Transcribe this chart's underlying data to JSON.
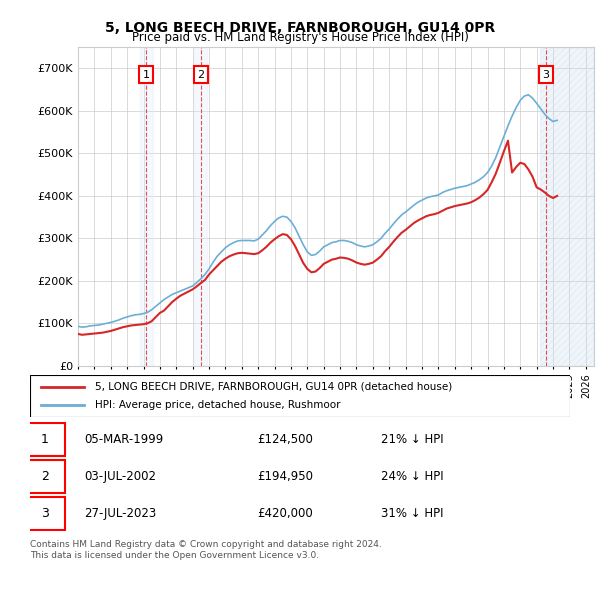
{
  "title": "5, LONG BEECH DRIVE, FARNBOROUGH, GU14 0PR",
  "subtitle": "Price paid vs. HM Land Registry's House Price Index (HPI)",
  "legend_line1": "5, LONG BEECH DRIVE, FARNBOROUGH, GU14 0PR (detached house)",
  "legend_line2": "HPI: Average price, detached house, Rushmoor",
  "footer1": "Contains HM Land Registry data © Crown copyright and database right 2024.",
  "footer2": "This data is licensed under the Open Government Licence v3.0.",
  "transactions": [
    {
      "num": 1,
      "date": "05-MAR-1999",
      "price": "£124,500",
      "pct": "21% ↓ HPI",
      "x": 1999.17
    },
    {
      "num": 2,
      "date": "03-JUL-2002",
      "price": "£194,950",
      "pct": "24% ↓ HPI",
      "x": 2002.5
    },
    {
      "num": 3,
      "date": "27-JUL-2023",
      "price": "£420,000",
      "pct": "31% ↓ HPI",
      "x": 2023.57
    }
  ],
  "ylim": [
    0,
    750000
  ],
  "yticks": [
    0,
    100000,
    200000,
    300000,
    400000,
    500000,
    600000,
    700000
  ],
  "xlim_left": 1995.0,
  "xlim_right": 2026.5,
  "hpi_color": "#6baed6",
  "price_color": "#d62728",
  "vline_color": "#d62728",
  "highlight_color": "#deebf7",
  "hatch_color": "#c6dbef",
  "grid_color": "#cccccc",
  "hpi_data_x": [
    1995,
    1995.25,
    1995.5,
    1995.75,
    1996,
    1996.25,
    1996.5,
    1996.75,
    1997,
    1997.25,
    1997.5,
    1997.75,
    1998,
    1998.25,
    1998.5,
    1998.75,
    1999,
    1999.25,
    1999.5,
    1999.75,
    2000,
    2000.25,
    2000.5,
    2000.75,
    2001,
    2001.25,
    2001.5,
    2001.75,
    2002,
    2002.25,
    2002.5,
    2002.75,
    2003,
    2003.25,
    2003.5,
    2003.75,
    2004,
    2004.25,
    2004.5,
    2004.75,
    2005,
    2005.25,
    2005.5,
    2005.75,
    2006,
    2006.25,
    2006.5,
    2006.75,
    2007,
    2007.25,
    2007.5,
    2007.75,
    2008,
    2008.25,
    2008.5,
    2008.75,
    2009,
    2009.25,
    2009.5,
    2009.75,
    2010,
    2010.25,
    2010.5,
    2010.75,
    2011,
    2011.25,
    2011.5,
    2011.75,
    2012,
    2012.25,
    2012.5,
    2012.75,
    2013,
    2013.25,
    2013.5,
    2013.75,
    2014,
    2014.25,
    2014.5,
    2014.75,
    2015,
    2015.25,
    2015.5,
    2015.75,
    2016,
    2016.25,
    2016.5,
    2016.75,
    2017,
    2017.25,
    2017.5,
    2017.75,
    2018,
    2018.25,
    2018.5,
    2018.75,
    2019,
    2019.25,
    2019.5,
    2019.75,
    2020,
    2020.25,
    2020.5,
    2020.75,
    2021,
    2021.25,
    2021.5,
    2021.75,
    2022,
    2022.25,
    2022.5,
    2022.75,
    2023,
    2023.25,
    2023.5,
    2023.75,
    2024,
    2024.25
  ],
  "hpi_data_y": [
    93000,
    91000,
    92000,
    94000,
    95000,
    96000,
    98000,
    100000,
    102000,
    105000,
    108000,
    112000,
    115000,
    118000,
    120000,
    121000,
    123000,
    126000,
    132000,
    140000,
    148000,
    156000,
    162000,
    168000,
    172000,
    176000,
    180000,
    184000,
    188000,
    196000,
    205000,
    215000,
    228000,
    244000,
    258000,
    268000,
    278000,
    285000,
    290000,
    294000,
    295000,
    295000,
    295000,
    294000,
    298000,
    308000,
    318000,
    330000,
    340000,
    348000,
    352000,
    350000,
    340000,
    325000,
    305000,
    285000,
    268000,
    260000,
    262000,
    270000,
    280000,
    285000,
    290000,
    292000,
    295000,
    295000,
    293000,
    290000,
    285000,
    282000,
    280000,
    282000,
    285000,
    292000,
    300000,
    312000,
    322000,
    334000,
    345000,
    355000,
    362000,
    370000,
    378000,
    385000,
    390000,
    395000,
    398000,
    400000,
    402000,
    408000,
    412000,
    415000,
    418000,
    420000,
    422000,
    424000,
    428000,
    432000,
    438000,
    445000,
    455000,
    470000,
    490000,
    515000,
    540000,
    565000,
    588000,
    608000,
    625000,
    635000,
    638000,
    630000,
    618000,
    605000,
    592000,
    582000,
    575000,
    578000
  ],
  "price_data_x": [
    1995,
    1995.25,
    1995.5,
    1995.75,
    1996,
    1996.25,
    1996.5,
    1996.75,
    1997,
    1997.25,
    1997.5,
    1997.75,
    1998,
    1998.25,
    1998.5,
    1998.75,
    1999,
    1999.25,
    1999.5,
    1999.75,
    2000,
    2000.25,
    2000.5,
    2000.75,
    2001,
    2001.25,
    2001.5,
    2001.75,
    2002,
    2002.25,
    2002.5,
    2002.75,
    2003,
    2003.25,
    2003.5,
    2003.75,
    2004,
    2004.25,
    2004.5,
    2004.75,
    2005,
    2005.25,
    2005.5,
    2005.75,
    2006,
    2006.25,
    2006.5,
    2006.75,
    2007,
    2007.25,
    2007.5,
    2007.75,
    2008,
    2008.25,
    2008.5,
    2008.75,
    2009,
    2009.25,
    2009.5,
    2009.75,
    2010,
    2010.25,
    2010.5,
    2010.75,
    2011,
    2011.25,
    2011.5,
    2011.75,
    2012,
    2012.25,
    2012.5,
    2012.75,
    2013,
    2013.25,
    2013.5,
    2013.75,
    2014,
    2014.25,
    2014.5,
    2014.75,
    2015,
    2015.25,
    2015.5,
    2015.75,
    2016,
    2016.25,
    2016.5,
    2016.75,
    2017,
    2017.25,
    2017.5,
    2017.75,
    2018,
    2018.25,
    2018.5,
    2018.75,
    2019,
    2019.25,
    2019.5,
    2019.75,
    2020,
    2020.25,
    2020.5,
    2020.75,
    2021,
    2021.25,
    2021.5,
    2021.75,
    2022,
    2022.25,
    2022.5,
    2022.75,
    2023,
    2023.25,
    2023.5,
    2023.75,
    2024,
    2024.25
  ],
  "price_data_y": [
    75000,
    73000,
    74000,
    75000,
    76000,
    77000,
    78000,
    80000,
    82000,
    85000,
    88000,
    91000,
    93000,
    95000,
    96000,
    97000,
    98000,
    100000,
    105000,
    115000,
    124500,
    130000,
    140000,
    150000,
    158000,
    165000,
    170000,
    175000,
    180000,
    187000,
    194950,
    202000,
    215000,
    225000,
    235000,
    245000,
    252000,
    258000,
    262000,
    265000,
    266000,
    265000,
    264000,
    263000,
    265000,
    272000,
    280000,
    290000,
    298000,
    305000,
    310000,
    308000,
    298000,
    282000,
    262000,
    242000,
    228000,
    220000,
    222000,
    230000,
    240000,
    245000,
    250000,
    252000,
    255000,
    254000,
    252000,
    248000,
    243000,
    240000,
    238000,
    240000,
    243000,
    250000,
    258000,
    270000,
    280000,
    292000,
    303000,
    313000,
    320000,
    328000,
    336000,
    342000,
    347000,
    352000,
    355000,
    357000,
    360000,
    365000,
    370000,
    373000,
    376000,
    378000,
    380000,
    382000,
    385000,
    390000,
    396000,
    404000,
    414000,
    432000,
    452000,
    478000,
    505000,
    530000,
    455000,
    468000,
    478000,
    475000,
    462000,
    445000,
    420000,
    415000,
    408000,
    400000,
    395000,
    400000
  ]
}
